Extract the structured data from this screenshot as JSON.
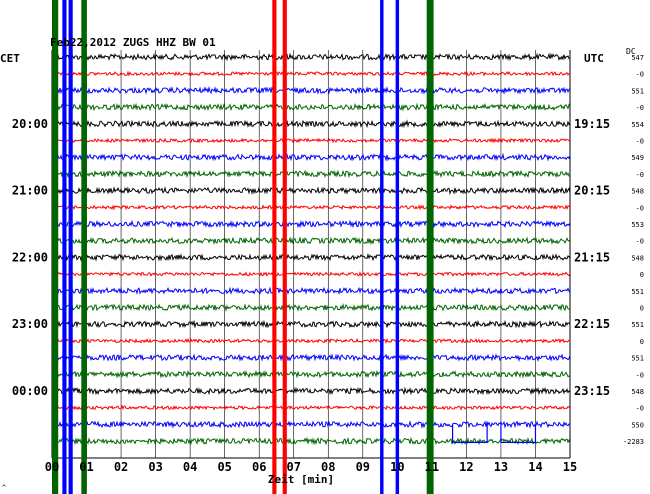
{
  "header": {
    "title": "Feb22,2012  ZUGS HHZ BW 01"
  },
  "left_timezone": "CET",
  "right_timezone": "UTC",
  "dc_label": "DC",
  "colors": {
    "trace_cycle": [
      "#000000",
      "#ff0000",
      "#0000ff",
      "#006400"
    ],
    "grid": "#000000",
    "background": "#ffffff"
  },
  "chart_data": {
    "type": "line",
    "title": "Feb22,2012  ZUGS HHZ BW 01",
    "xlabel": "Zeit [min]",
    "ylabel": "",
    "xlim": [
      0,
      15
    ],
    "x_ticks": [
      "00",
      "01",
      "02",
      "03",
      "04",
      "05",
      "06",
      "07",
      "08",
      "09",
      "10",
      "11",
      "12",
      "13",
      "14",
      "15"
    ],
    "grid": true,
    "row_count": 24,
    "left_hour_labels": [
      {
        "row": 4,
        "label": "20:00"
      },
      {
        "row": 8,
        "label": "21:00"
      },
      {
        "row": 12,
        "label": "22:00"
      },
      {
        "row": 16,
        "label": "23:00"
      },
      {
        "row": 20,
        "label": "00:00"
      }
    ],
    "right_hour_labels": [
      {
        "row": 4,
        "label": "19:15"
      },
      {
        "row": 8,
        "label": "20:15"
      },
      {
        "row": 12,
        "label": "21:15"
      },
      {
        "row": 16,
        "label": "22:15"
      },
      {
        "row": 20,
        "label": "23:15"
      }
    ],
    "dc_offsets": [
      "547",
      "-0",
      "551",
      "-0",
      "554",
      "-0",
      "549",
      "-0",
      "548",
      "-0",
      "553",
      "-0",
      "548",
      "0",
      "551",
      "0",
      "551",
      "0",
      "551",
      "-0",
      "548",
      "-0",
      "550",
      "-2283"
    ],
    "broad_signals": [
      {
        "color": "#006400",
        "x_min": 0.0,
        "width_min": 0.18
      },
      {
        "color": "#0000ff",
        "x_min": 0.3,
        "width_min": 0.12
      },
      {
        "color": "#0000ff",
        "x_min": 0.48,
        "width_min": 0.12
      },
      {
        "color": "#006400",
        "x_min": 0.85,
        "width_min": 0.16
      },
      {
        "color": "#ff0000",
        "x_min": 6.38,
        "width_min": 0.12
      },
      {
        "color": "#ff0000",
        "x_min": 6.68,
        "width_min": 0.12
      },
      {
        "color": "#0000ff",
        "x_min": 9.5,
        "width_min": 0.1
      },
      {
        "color": "#0000ff",
        "x_min": 9.95,
        "width_min": 0.1
      },
      {
        "color": "#006400",
        "x_min": 10.85,
        "width_min": 0.2
      }
    ]
  },
  "footer_mark": "^"
}
